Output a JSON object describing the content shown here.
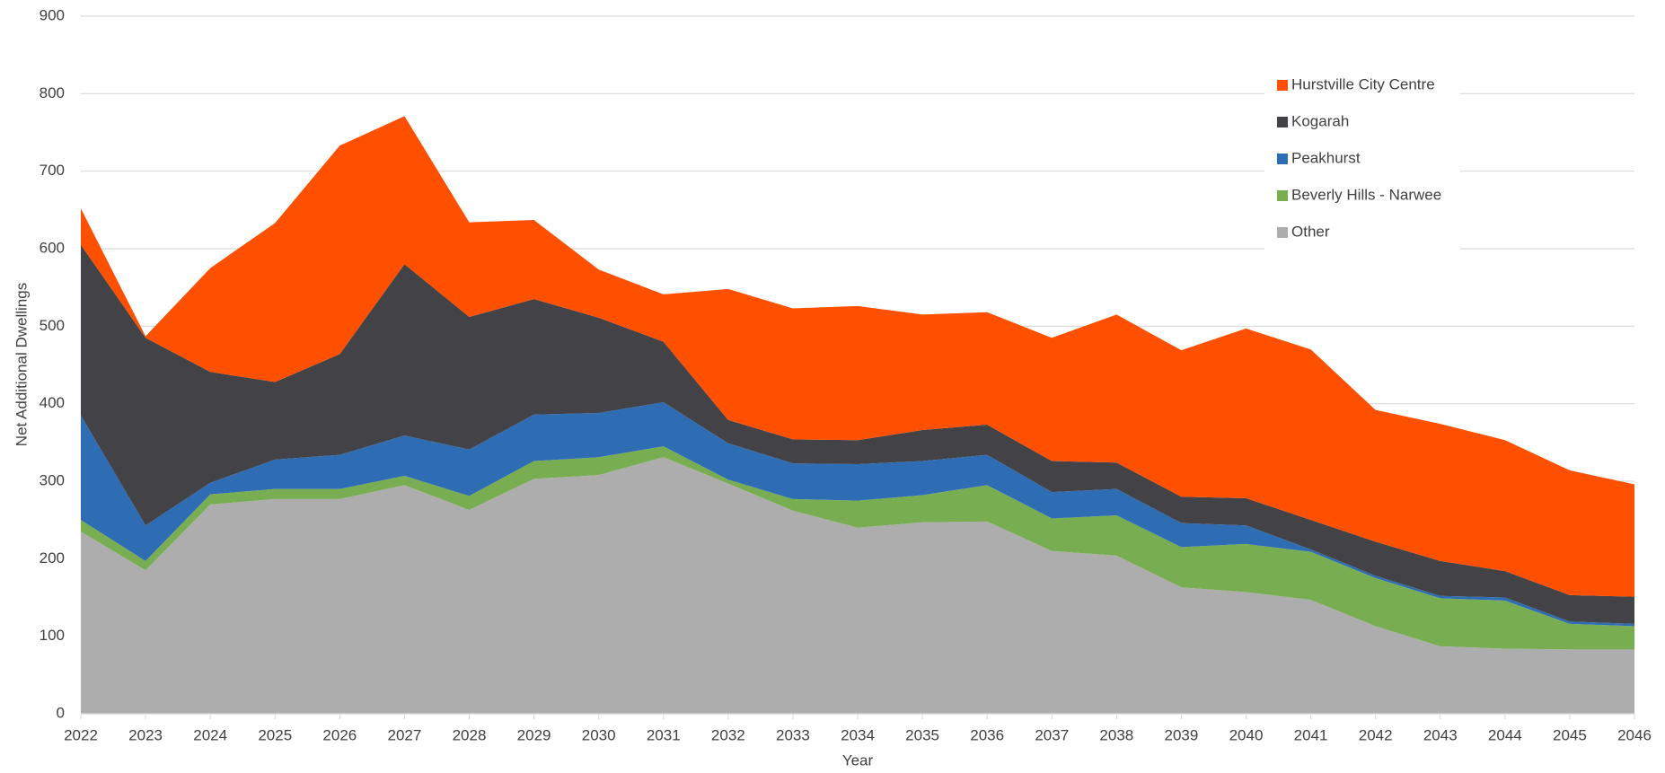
{
  "chart_data": {
    "type": "stacked-area",
    "x_label": "Year",
    "y_label": "Net Additional Dwellings",
    "x": [
      2022,
      2023,
      2024,
      2025,
      2026,
      2027,
      2028,
      2029,
      2030,
      2031,
      2032,
      2033,
      2034,
      2035,
      2036,
      2037,
      2038,
      2039,
      2040,
      2041,
      2042,
      2043,
      2044,
      2045,
      2046
    ],
    "xlim": [
      2022,
      2046
    ],
    "xticks": [
      2022,
      2023,
      2024,
      2025,
      2026,
      2027,
      2028,
      2029,
      2030,
      2031,
      2032,
      2033,
      2034,
      2035,
      2036,
      2037,
      2038,
      2039,
      2040,
      2041,
      2042,
      2043,
      2044,
      2045,
      2046
    ],
    "ylim": [
      0,
      900
    ],
    "yticks": [
      0,
      100,
      200,
      300,
      400,
      500,
      600,
      700,
      800,
      900
    ],
    "grid": true,
    "legend": "upper-right",
    "series": [
      {
        "name": "Hurstville City Centre",
        "color": "#ff5000",
        "values": [
          47,
          2,
          134,
          205,
          269,
          191,
          122,
          102,
          62,
          61,
          169,
          169,
          173,
          149,
          145,
          159,
          191,
          189,
          219,
          220,
          170,
          177,
          169,
          161,
          145
        ]
      },
      {
        "name": "Kogarah",
        "color": "#434247",
        "values": [
          220,
          242,
          143,
          100,
          130,
          221,
          171,
          149,
          123,
          78,
          30,
          31,
          31,
          40,
          39,
          40,
          34,
          34,
          35,
          38,
          44,
          45,
          34,
          34,
          35
        ]
      },
      {
        "name": "Peakhurst",
        "color": "#2e6db4",
        "values": [
          135,
          46,
          15,
          38,
          44,
          52,
          60,
          60,
          57,
          57,
          47,
          46,
          47,
          44,
          39,
          34,
          34,
          31,
          24,
          3,
          3,
          3,
          4,
          3,
          3
        ]
      },
      {
        "name": "Beverly Hills - Narwee",
        "color": "#78ad52",
        "values": [
          15,
          12,
          13,
          13,
          13,
          12,
          18,
          23,
          23,
          14,
          5,
          15,
          35,
          35,
          47,
          42,
          52,
          52,
          62,
          62,
          62,
          62,
          62,
          33,
          30
        ]
      },
      {
        "name": "Other",
        "color": "#adadad",
        "values": [
          235,
          185,
          270,
          277,
          277,
          295,
          263,
          303,
          308,
          331,
          297,
          262,
          240,
          247,
          248,
          210,
          204,
          163,
          157,
          147,
          113,
          87,
          84,
          83,
          83
        ]
      }
    ]
  }
}
